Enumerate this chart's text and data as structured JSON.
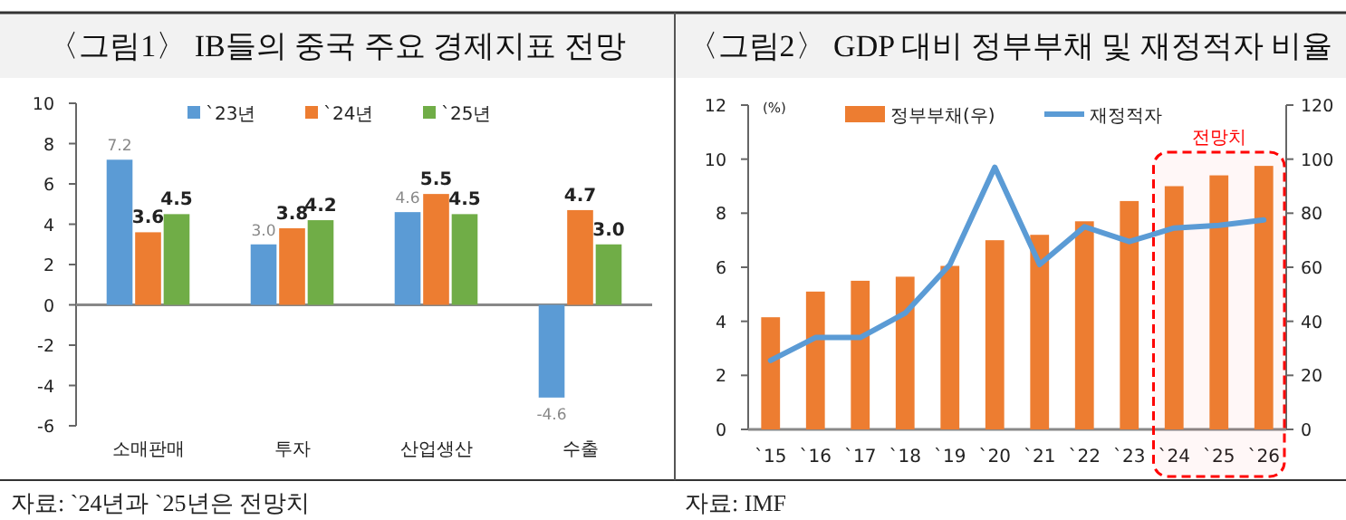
{
  "chart_data": [
    {
      "type": "bar",
      "title": "〈그림1〉 IB들의 중국 주요 경제지표 전망",
      "categories": [
        "소매판매",
        "투자",
        "산업생산",
        "수출"
      ],
      "series": [
        {
          "name": "`23년",
          "color": "#5b9bd5",
          "values": [
            7.2,
            3.0,
            4.6,
            -4.6
          ],
          "value_labels": [
            "7.2",
            "3.0",
            "4.6",
            "-4.6"
          ]
        },
        {
          "name": "`24년",
          "color": "#ed7d31",
          "values": [
            3.6,
            3.8,
            5.5,
            4.7
          ],
          "value_labels": [
            "3.6",
            "3.8",
            "5.5",
            "4.7"
          ]
        },
        {
          "name": "`25년",
          "color": "#70ad47",
          "values": [
            4.5,
            4.2,
            4.5,
            3.0
          ],
          "value_labels": [
            "4.5",
            "4.2",
            "4.5",
            "3.0"
          ]
        }
      ],
      "ylim": [
        -6,
        10
      ],
      "yticks": [
        -6,
        -4,
        -2,
        0,
        2,
        4,
        6,
        8,
        10
      ],
      "legend": "top",
      "annotations": [
        "자료: `24년과 `25년은 전망치"
      ]
    },
    {
      "type": "bar",
      "title": "〈그림2〉 GDP 대비 정부부채 및 재정적자 비율",
      "ylabel": "(%)",
      "categories": [
        "`15",
        "`16",
        "`17",
        "`18",
        "`19",
        "`20",
        "`21",
        "`22",
        "`23",
        "`24",
        "`25",
        "`26"
      ],
      "series": [
        {
          "name": "정부부채(우)",
          "type": "bar",
          "axis": "y2",
          "color": "#ed7d31",
          "values": [
            41.5,
            51,
            55,
            56.5,
            60.5,
            70,
            72,
            77,
            84.5,
            90,
            94,
            97.5
          ]
        },
        {
          "name": "재정적자",
          "type": "line",
          "color": "#5b9bd5",
          "values": [
            2.55,
            3.4,
            3.4,
            4.3,
            6.1,
            9.7,
            6.1,
            7.5,
            6.95,
            7.45,
            7.55,
            7.75
          ]
        }
      ],
      "ylim": [
        0,
        12
      ],
      "yticks": [
        0,
        2,
        4,
        6,
        8,
        10,
        12
      ],
      "y2lim": [
        0,
        120
      ],
      "y2ticks": [
        0,
        20,
        40,
        60,
        80,
        100,
        120
      ],
      "bands": [
        {
          "axis": "x",
          "from": "`24",
          "to": "`26",
          "label": "전망치",
          "color": "#ff0000"
        }
      ],
      "legend": "top",
      "marker": "none",
      "annotations": [
        "자료: IMF"
      ]
    }
  ]
}
